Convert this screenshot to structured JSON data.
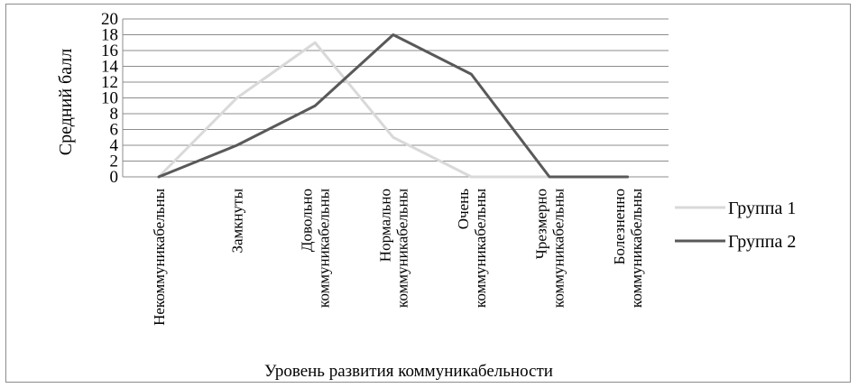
{
  "chart_data": {
    "type": "line",
    "title": "",
    "xlabel": "Уровень развития коммуникабельности",
    "ylabel": "Средний балл",
    "ylim": [
      0,
      20
    ],
    "yticks": [
      "0",
      "2",
      "4",
      "6",
      "8",
      "10",
      "12",
      "14",
      "16",
      "18",
      "20"
    ],
    "grid": true,
    "legend_position": "right",
    "categories": [
      [
        "Некоммуникабельны"
      ],
      [
        "Замкнуты"
      ],
      [
        "Довольно",
        "коммуникабельны"
      ],
      [
        "Нормально",
        "коммуникабельны"
      ],
      [
        "Очень",
        "коммуникабельны"
      ],
      [
        "Чрезмерно",
        "коммуникабельны"
      ],
      [
        "Болезненно",
        "коммуникабельны"
      ]
    ],
    "series": [
      {
        "name": "Группа 1",
        "color": "#d9d9d9",
        "values": [
          0,
          10,
          17,
          5,
          0,
          0,
          0
        ]
      },
      {
        "name": "Группа 2",
        "color": "#595959",
        "values": [
          0,
          4,
          9,
          18,
          13,
          0,
          0
        ]
      }
    ]
  }
}
